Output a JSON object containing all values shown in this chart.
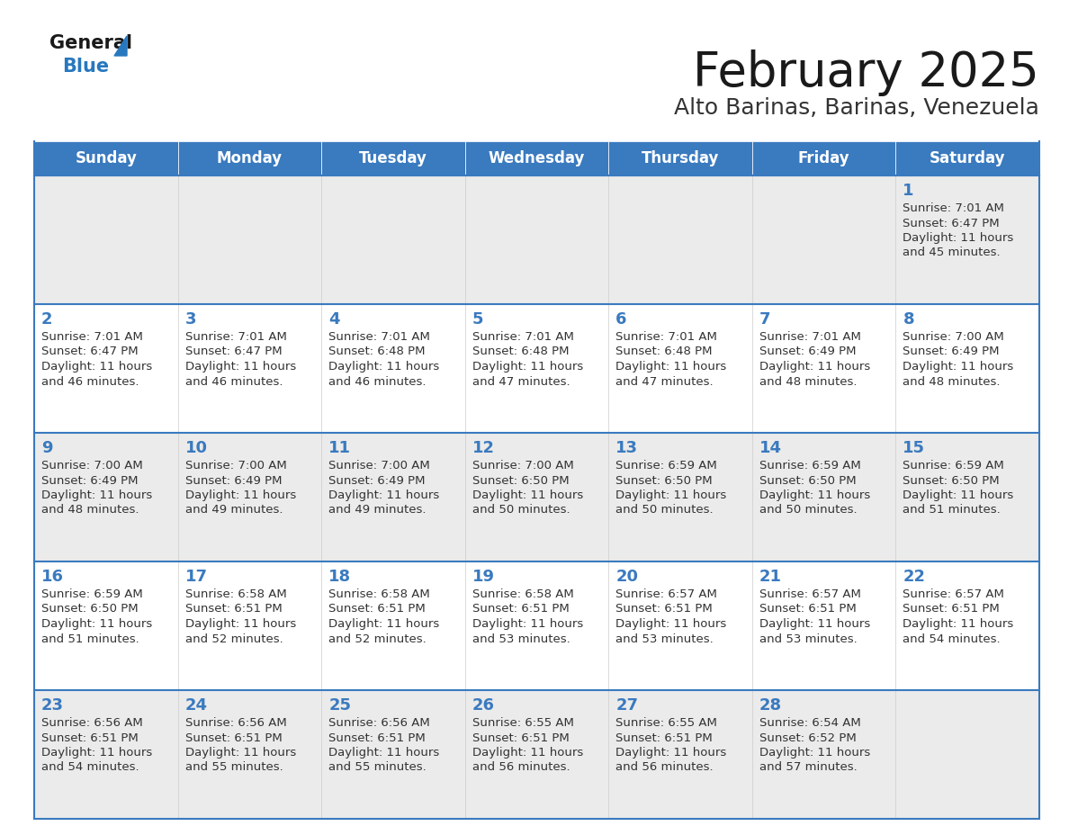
{
  "title": "February 2025",
  "subtitle": "Alto Barinas, Barinas, Venezuela",
  "header_bg": "#3a7abf",
  "header_text_color": "#ffffff",
  "cell_bg_light": "#ebebeb",
  "cell_bg_white": "#ffffff",
  "border_color": "#3a7abf",
  "day_names": [
    "Sunday",
    "Monday",
    "Tuesday",
    "Wednesday",
    "Thursday",
    "Friday",
    "Saturday"
  ],
  "title_color": "#1a1a1a",
  "subtitle_color": "#333333",
  "day_number_color": "#3a7abf",
  "cell_text_color": "#333333",
  "calendar": [
    [
      null,
      null,
      null,
      null,
      null,
      null,
      {
        "day": 1,
        "sunrise": "7:01 AM",
        "sunset": "6:47 PM",
        "daylight": "11 hours",
        "daylight2": "and 45 minutes."
      }
    ],
    [
      {
        "day": 2,
        "sunrise": "7:01 AM",
        "sunset": "6:47 PM",
        "daylight": "11 hours",
        "daylight2": "and 46 minutes."
      },
      {
        "day": 3,
        "sunrise": "7:01 AM",
        "sunset": "6:47 PM",
        "daylight": "11 hours",
        "daylight2": "and 46 minutes."
      },
      {
        "day": 4,
        "sunrise": "7:01 AM",
        "sunset": "6:48 PM",
        "daylight": "11 hours",
        "daylight2": "and 46 minutes."
      },
      {
        "day": 5,
        "sunrise": "7:01 AM",
        "sunset": "6:48 PM",
        "daylight": "11 hours",
        "daylight2": "and 47 minutes."
      },
      {
        "day": 6,
        "sunrise": "7:01 AM",
        "sunset": "6:48 PM",
        "daylight": "11 hours",
        "daylight2": "and 47 minutes."
      },
      {
        "day": 7,
        "sunrise": "7:01 AM",
        "sunset": "6:49 PM",
        "daylight": "11 hours",
        "daylight2": "and 48 minutes."
      },
      {
        "day": 8,
        "sunrise": "7:00 AM",
        "sunset": "6:49 PM",
        "daylight": "11 hours",
        "daylight2": "and 48 minutes."
      }
    ],
    [
      {
        "day": 9,
        "sunrise": "7:00 AM",
        "sunset": "6:49 PM",
        "daylight": "11 hours",
        "daylight2": "and 48 minutes."
      },
      {
        "day": 10,
        "sunrise": "7:00 AM",
        "sunset": "6:49 PM",
        "daylight": "11 hours",
        "daylight2": "and 49 minutes."
      },
      {
        "day": 11,
        "sunrise": "7:00 AM",
        "sunset": "6:49 PM",
        "daylight": "11 hours",
        "daylight2": "and 49 minutes."
      },
      {
        "day": 12,
        "sunrise": "7:00 AM",
        "sunset": "6:50 PM",
        "daylight": "11 hours",
        "daylight2": "and 50 minutes."
      },
      {
        "day": 13,
        "sunrise": "6:59 AM",
        "sunset": "6:50 PM",
        "daylight": "11 hours",
        "daylight2": "and 50 minutes."
      },
      {
        "day": 14,
        "sunrise": "6:59 AM",
        "sunset": "6:50 PM",
        "daylight": "11 hours",
        "daylight2": "and 50 minutes."
      },
      {
        "day": 15,
        "sunrise": "6:59 AM",
        "sunset": "6:50 PM",
        "daylight": "11 hours",
        "daylight2": "and 51 minutes."
      }
    ],
    [
      {
        "day": 16,
        "sunrise": "6:59 AM",
        "sunset": "6:50 PM",
        "daylight": "11 hours",
        "daylight2": "and 51 minutes."
      },
      {
        "day": 17,
        "sunrise": "6:58 AM",
        "sunset": "6:51 PM",
        "daylight": "11 hours",
        "daylight2": "and 52 minutes."
      },
      {
        "day": 18,
        "sunrise": "6:58 AM",
        "sunset": "6:51 PM",
        "daylight": "11 hours",
        "daylight2": "and 52 minutes."
      },
      {
        "day": 19,
        "sunrise": "6:58 AM",
        "sunset": "6:51 PM",
        "daylight": "11 hours",
        "daylight2": "and 53 minutes."
      },
      {
        "day": 20,
        "sunrise": "6:57 AM",
        "sunset": "6:51 PM",
        "daylight": "11 hours",
        "daylight2": "and 53 minutes."
      },
      {
        "day": 21,
        "sunrise": "6:57 AM",
        "sunset": "6:51 PM",
        "daylight": "11 hours",
        "daylight2": "and 53 minutes."
      },
      {
        "day": 22,
        "sunrise": "6:57 AM",
        "sunset": "6:51 PM",
        "daylight": "11 hours",
        "daylight2": "and 54 minutes."
      }
    ],
    [
      {
        "day": 23,
        "sunrise": "6:56 AM",
        "sunset": "6:51 PM",
        "daylight": "11 hours",
        "daylight2": "and 54 minutes."
      },
      {
        "day": 24,
        "sunrise": "6:56 AM",
        "sunset": "6:51 PM",
        "daylight": "11 hours",
        "daylight2": "and 55 minutes."
      },
      {
        "day": 25,
        "sunrise": "6:56 AM",
        "sunset": "6:51 PM",
        "daylight": "11 hours",
        "daylight2": "and 55 minutes."
      },
      {
        "day": 26,
        "sunrise": "6:55 AM",
        "sunset": "6:51 PM",
        "daylight": "11 hours",
        "daylight2": "and 56 minutes."
      },
      {
        "day": 27,
        "sunrise": "6:55 AM",
        "sunset": "6:51 PM",
        "daylight": "11 hours",
        "daylight2": "and 56 minutes."
      },
      {
        "day": 28,
        "sunrise": "6:54 AM",
        "sunset": "6:52 PM",
        "daylight": "11 hours",
        "daylight2": "and 57 minutes."
      },
      null
    ]
  ],
  "logo_general_color": "#1a1a1a",
  "logo_blue_color": "#2878be"
}
